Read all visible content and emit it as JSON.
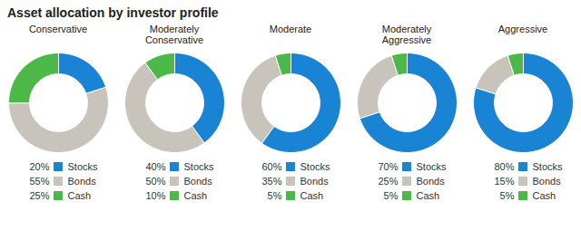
{
  "title": "Asset allocation by investor profile",
  "chart_data": [
    {
      "type": "pie",
      "title": "Conservative",
      "categories": [
        "Stocks",
        "Bonds",
        "Cash"
      ],
      "values": [
        20,
        55,
        25
      ],
      "value_labels": [
        "20%",
        "55%",
        "25%"
      ],
      "colors": [
        "#1a84d4",
        "#c8c4bc",
        "#4cb848"
      ],
      "legend": "bottom"
    },
    {
      "type": "pie",
      "title": "Moderately\nConservative",
      "categories": [
        "Stocks",
        "Bonds",
        "Cash"
      ],
      "values": [
        40,
        50,
        10
      ],
      "value_labels": [
        "40%",
        "50%",
        "10%"
      ],
      "colors": [
        "#1a84d4",
        "#c8c4bc",
        "#4cb848"
      ],
      "legend": "bottom"
    },
    {
      "type": "pie",
      "title": "Moderate",
      "categories": [
        "Stocks",
        "Bonds",
        "Cash"
      ],
      "values": [
        60,
        35,
        5
      ],
      "value_labels": [
        "60%",
        "35%",
        "5%"
      ],
      "colors": [
        "#1a84d4",
        "#c8c4bc",
        "#4cb848"
      ],
      "legend": "bottom"
    },
    {
      "type": "pie",
      "title": "Moderately\nAggressive",
      "categories": [
        "Stocks",
        "Bonds",
        "Cash"
      ],
      "values": [
        70,
        25,
        5
      ],
      "value_labels": [
        "70%",
        "25%",
        "5%"
      ],
      "colors": [
        "#1a84d4",
        "#c8c4bc",
        "#4cb848"
      ],
      "legend": "bottom"
    },
    {
      "type": "pie",
      "title": "Aggressive",
      "categories": [
        "Stocks",
        "Bonds",
        "Cash"
      ],
      "values": [
        80,
        15,
        5
      ],
      "value_labels": [
        "80%",
        "15%",
        "5%"
      ],
      "colors": [
        "#1a84d4",
        "#c8c4bc",
        "#4cb848"
      ],
      "legend": "bottom"
    }
  ]
}
